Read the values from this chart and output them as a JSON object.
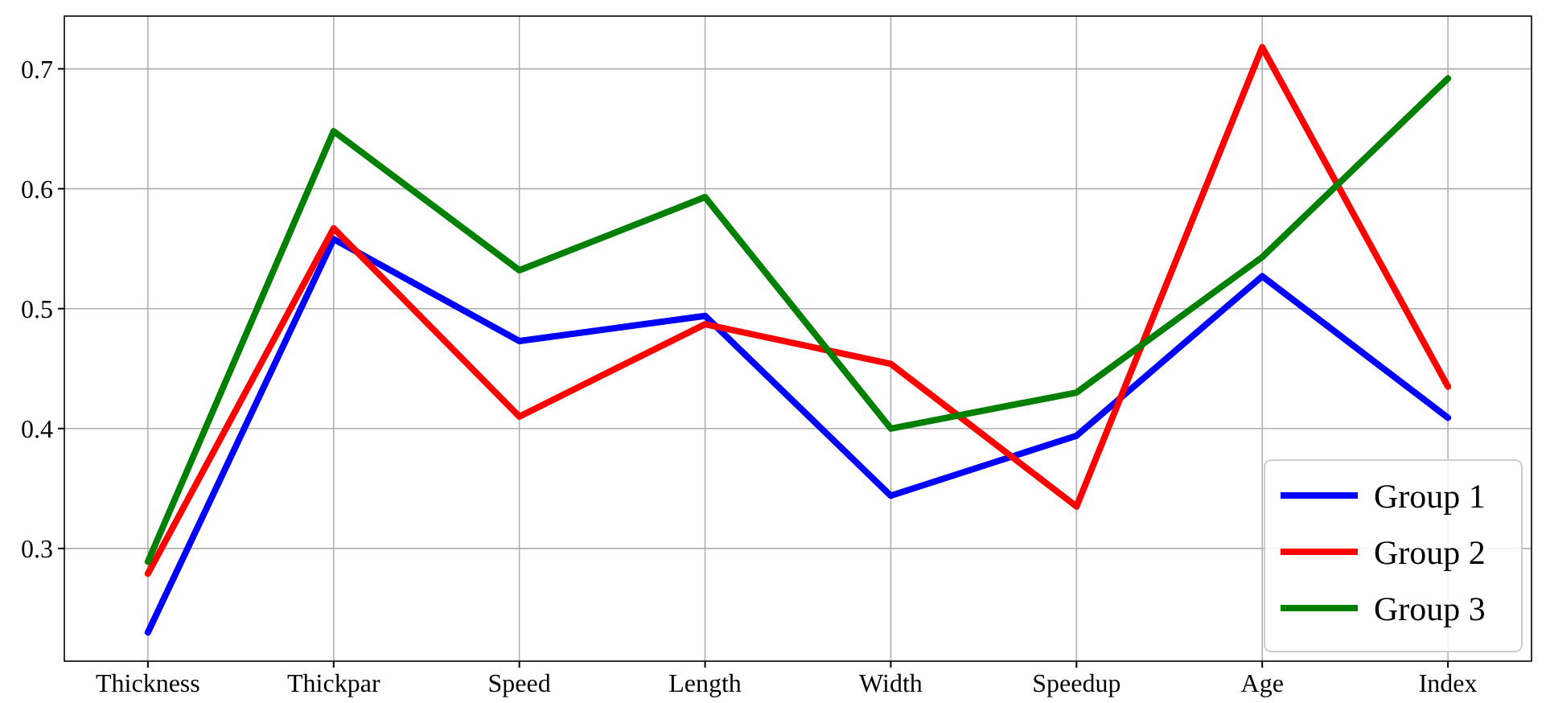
{
  "chart_data": {
    "type": "line",
    "categories": [
      "Thickness",
      "Thickpar",
      "Speed",
      "Length",
      "Width",
      "Speedup",
      "Age",
      "Index"
    ],
    "series": [
      {
        "name": "Group 1",
        "color": "#0000ff",
        "values": [
          0.23,
          0.558,
          0.473,
          0.494,
          0.344,
          0.394,
          0.527,
          0.409
        ]
      },
      {
        "name": "Group 2",
        "color": "#ff0000",
        "values": [
          0.279,
          0.567,
          0.41,
          0.487,
          0.454,
          0.335,
          0.718,
          0.435
        ]
      },
      {
        "name": "Group 3",
        "color": "#008000",
        "values": [
          0.289,
          0.648,
          0.532,
          0.593,
          0.4,
          0.43,
          0.543,
          0.692
        ]
      }
    ],
    "ylim": [
      0.206,
      0.744
    ],
    "yticks": [
      {
        "value": 0.3,
        "label": "0.3"
      },
      {
        "value": 0.4,
        "label": "0.4"
      },
      {
        "value": 0.5,
        "label": "0.5"
      },
      {
        "value": 0.6,
        "label": "0.6"
      },
      {
        "value": 0.7,
        "label": "0.7"
      }
    ],
    "grid": true,
    "legend": "bottom right",
    "marker": "none",
    "line_style": "solid"
  }
}
